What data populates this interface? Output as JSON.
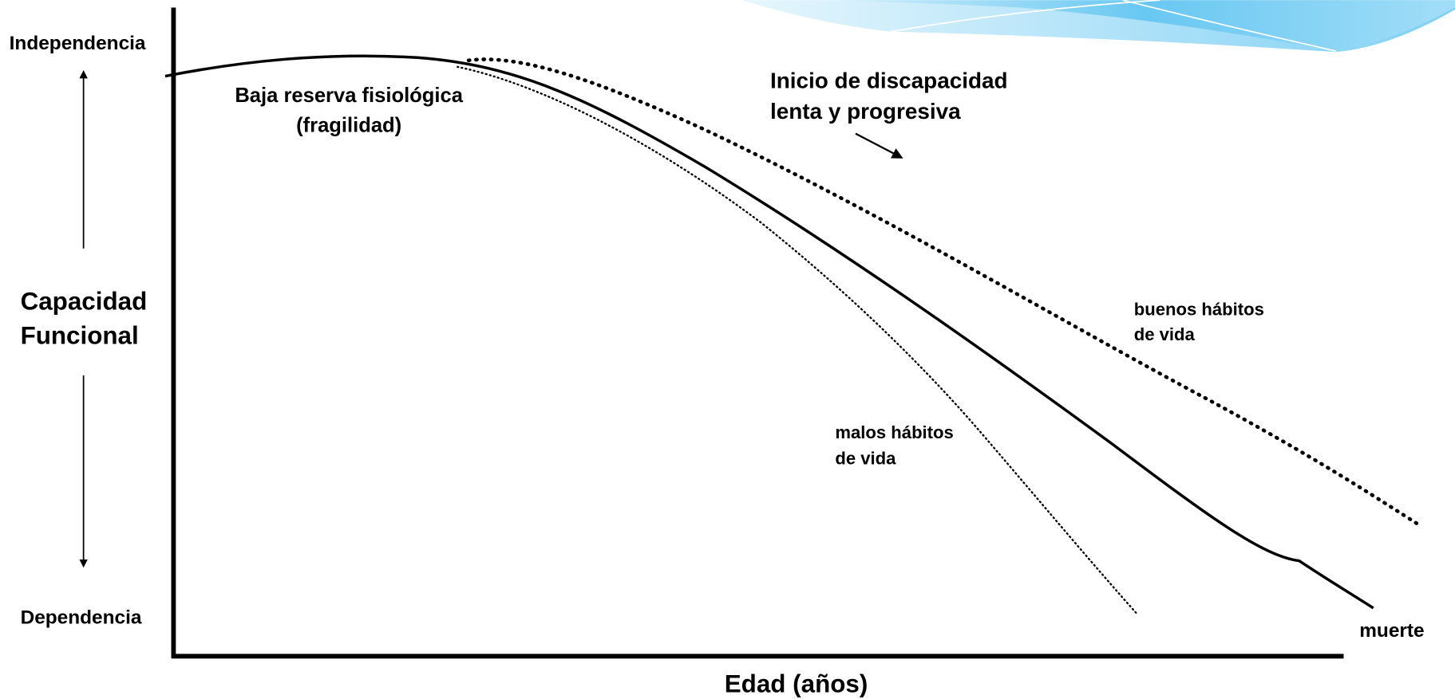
{
  "axes": {
    "y_top": "Independencia",
    "y_bottom": "Dependencia",
    "y_label": [
      "Capacidad",
      "Funcional"
    ],
    "x_label": "Edad (años)"
  },
  "annotations": {
    "frailty": [
      "Baja reserva fisiológica",
      "(fragilidad)"
    ],
    "disability_onset": [
      "Inicio de discapacidad",
      "lenta y progresiva"
    ],
    "good_habits": [
      "buenos hábitos",
      "de vida"
    ],
    "bad_habits": [
      "malos hábitos",
      "de vida"
    ],
    "death": "muerte"
  }
}
